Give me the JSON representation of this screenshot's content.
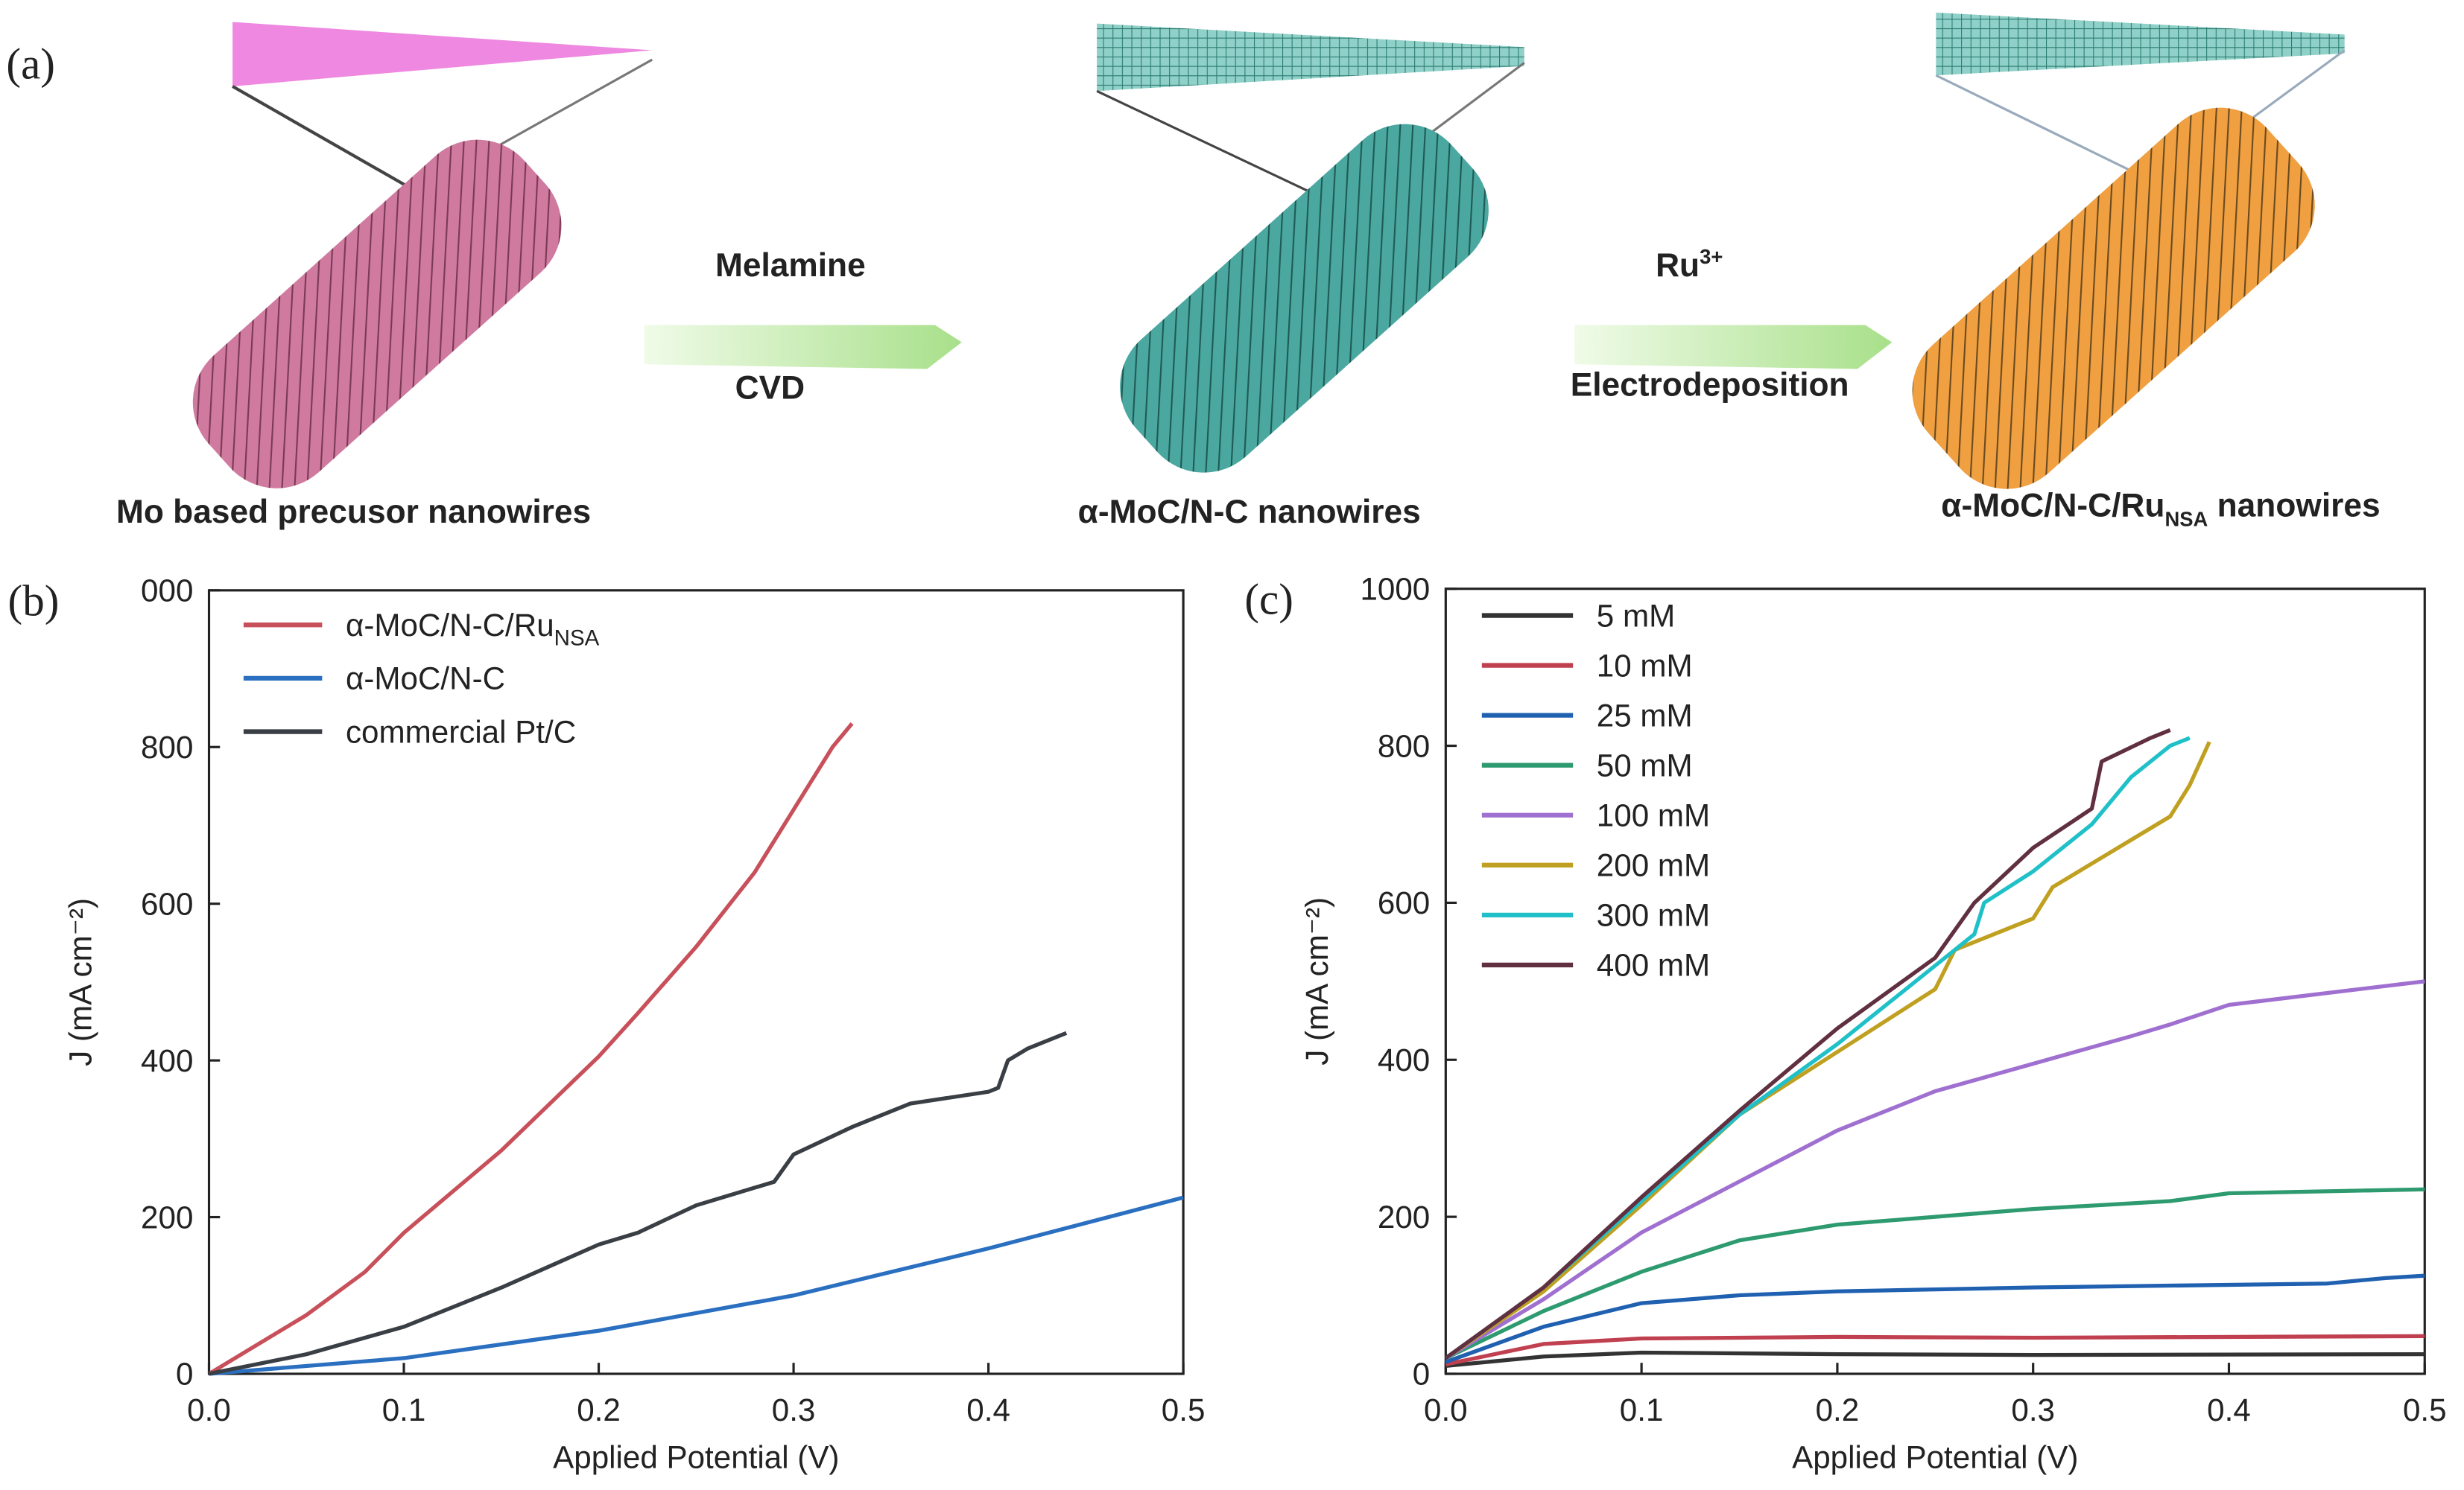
{
  "schematic": {
    "panel_label": "(a)",
    "step1_top": "Melamine",
    "step1_bottom": "CVD",
    "step2_top": "Ru",
    "step2_top_superscript": "3+",
    "step2_bottom": "Electrodeposition",
    "caption1": "Mo based precusor nanowires",
    "caption2": "α-MoC/N-C nanowires",
    "caption3": "α-MoC/N-C/Ru",
    "caption3_subscript": "NSA",
    "caption3_suffix": " nanowires"
  },
  "chart_data": [
    {
      "type": "line",
      "panel_label": "(b)",
      "x_label": "Applied Potential (V)",
      "y_label": "J (mA cm⁻²)",
      "xlim": [
        0,
        0.5
      ],
      "xticks": [
        {
          "value": 0,
          "label": "0.0"
        },
        0.1,
        0.2,
        0.3,
        0.4,
        0.5
      ],
      "ylim": [
        0,
        1000
      ],
      "yticks": [
        0,
        200,
        400,
        600,
        800,
        {
          "value": 1000,
          "label": "000"
        }
      ],
      "series": [
        {
          "name": "α-MoC/N-C/Ru",
          "name_subscript": "NSA",
          "color": "#c8505a",
          "x": [
            0,
            0.05,
            0.08,
            0.1,
            0.15,
            0.2,
            0.22,
            0.25,
            0.28,
            0.3,
            0.32,
            0.33
          ],
          "values": [
            0,
            75,
            130,
            180,
            285,
            405,
            460,
            545,
            640,
            720,
            800,
            830
          ]
        },
        {
          "name": "α-MoC/N-C",
          "color": "#2a6fc0",
          "x": [
            0,
            0.1,
            0.2,
            0.3,
            0.4,
            0.5
          ],
          "values": [
            0,
            20,
            55,
            100,
            160,
            225
          ]
        },
        {
          "name": "commercial Pt/C",
          "color": "#3a3f45",
          "x": [
            0,
            0.05,
            0.1,
            0.15,
            0.2,
            0.22,
            0.25,
            0.29,
            0.3,
            0.33,
            0.36,
            0.4,
            0.405,
            0.41,
            0.42,
            0.44
          ],
          "values": [
            0,
            25,
            60,
            110,
            165,
            180,
            215,
            245,
            280,
            315,
            345,
            360,
            365,
            400,
            415,
            435
          ]
        }
      ]
    },
    {
      "type": "line",
      "panel_label": "(c)",
      "x_label": "Applied Potential (V)",
      "y_label": "J (mA cm⁻²)",
      "xlim": [
        0,
        0.5
      ],
      "xticks": [
        {
          "value": 0,
          "label": "0.0"
        },
        0.1,
        0.2,
        0.3,
        0.4,
        0.5
      ],
      "ylim": [
        0,
        1000
      ],
      "yticks": [
        0,
        200,
        400,
        600,
        800,
        1000
      ],
      "series": [
        {
          "name": "5 mM",
          "color": "#333333",
          "x": [
            0,
            0.05,
            0.1,
            0.2,
            0.3,
            0.5
          ],
          "values": [
            10,
            22,
            27,
            25,
            24,
            25
          ]
        },
        {
          "name": "10 mM",
          "color": "#c04050",
          "x": [
            0,
            0.05,
            0.1,
            0.2,
            0.3,
            0.5
          ],
          "values": [
            12,
            38,
            45,
            47,
            46,
            48
          ]
        },
        {
          "name": "25 mM",
          "color": "#2060b0",
          "x": [
            0,
            0.05,
            0.1,
            0.15,
            0.2,
            0.3,
            0.45,
            0.48,
            0.5
          ],
          "values": [
            15,
            60,
            90,
            100,
            105,
            110,
            115,
            122,
            125
          ]
        },
        {
          "name": "50 mM",
          "color": "#2e9a70",
          "x": [
            0,
            0.05,
            0.1,
            0.15,
            0.2,
            0.3,
            0.37,
            0.4,
            0.5
          ],
          "values": [
            20,
            80,
            130,
            170,
            190,
            210,
            220,
            230,
            235
          ]
        },
        {
          "name": "100 mM",
          "color": "#a070d0",
          "x": [
            0,
            0.05,
            0.1,
            0.15,
            0.2,
            0.25,
            0.3,
            0.35,
            0.37,
            0.4,
            0.45,
            0.5
          ],
          "values": [
            20,
            95,
            180,
            245,
            310,
            360,
            395,
            430,
            445,
            470,
            485,
            500
          ]
        },
        {
          "name": "200 mM",
          "color": "#c0a020",
          "x": [
            0,
            0.05,
            0.1,
            0.15,
            0.2,
            0.25,
            0.26,
            0.3,
            0.31,
            0.35,
            0.37,
            0.38,
            0.39
          ],
          "values": [
            20,
            105,
            215,
            330,
            410,
            490,
            540,
            580,
            620,
            680,
            710,
            750,
            805
          ]
        },
        {
          "name": "300 mM",
          "color": "#20c0c8",
          "x": [
            0,
            0.05,
            0.1,
            0.15,
            0.2,
            0.25,
            0.27,
            0.275,
            0.3,
            0.33,
            0.35,
            0.37,
            0.38
          ],
          "values": [
            20,
            110,
            220,
            330,
            420,
            520,
            560,
            600,
            640,
            700,
            760,
            800,
            810
          ]
        },
        {
          "name": "400 mM",
          "color": "#603040",
          "x": [
            0,
            0.05,
            0.1,
            0.15,
            0.2,
            0.25,
            0.27,
            0.3,
            0.33,
            0.335,
            0.36,
            0.37
          ],
          "values": [
            20,
            110,
            225,
            335,
            440,
            530,
            600,
            670,
            720,
            780,
            810,
            820
          ]
        }
      ]
    }
  ]
}
